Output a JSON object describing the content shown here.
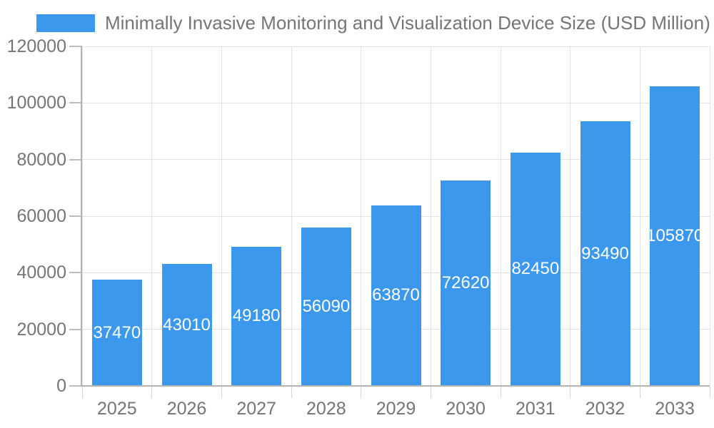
{
  "legend": {
    "label": "Minimally Invasive Monitoring and Visualization Device Size (USD Million)"
  },
  "chart_data": {
    "type": "bar",
    "title": "Minimally Invasive Monitoring and Visualization Device Size (USD Million)",
    "categories": [
      "2025",
      "2026",
      "2027",
      "2028",
      "2029",
      "2030",
      "2031",
      "2032",
      "2033"
    ],
    "values": [
      37470,
      43010,
      49180,
      56090,
      63870,
      72620,
      82450,
      93490,
      105870
    ],
    "value_labels": [
      "37470",
      "43010",
      "49180",
      "56090",
      "63870",
      "72620",
      "82450",
      "93490",
      "105870"
    ],
    "xlabel": "",
    "ylabel": "",
    "ylim": [
      0,
      120000
    ],
    "ytick_interval": 20000,
    "ytick_labels": [
      "0",
      "20000",
      "40000",
      "60000",
      "80000",
      "100000",
      "120000"
    ],
    "grid": true,
    "legend_position": "top-left",
    "colors": {
      "bar": "#3b98ec",
      "value_label": "#ffffff",
      "axis_text": "#757575",
      "gridline": "#e2e2e2",
      "axis_line": "#b3b3b3"
    }
  }
}
